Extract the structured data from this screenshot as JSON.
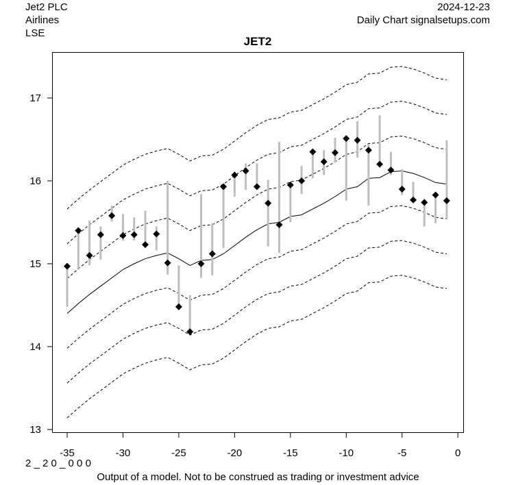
{
  "header": {
    "company": "Jet2 PLC",
    "sector": "Airlines",
    "exchange": "LSE",
    "date": "2024-12-23",
    "source": "Daily Chart signalsetups.com"
  },
  "footer": {
    "code": "2 _ 2 0 _ 0 0 0",
    "disclaimer": "Output of a model. Not to be construed as trading or investment advice"
  },
  "chart_data": {
    "type": "line",
    "title": "JET2",
    "xlabel": "",
    "ylabel": "",
    "xlim": [
      -36.3,
      0.5
    ],
    "ylim": [
      12.96,
      17.55
    ],
    "xticks": [
      -35,
      -30,
      -25,
      -20,
      -15,
      -10,
      -5,
      0
    ],
    "xtick_labels": [
      "-35",
      "-30",
      "-25",
      "-20",
      "-15",
      "-10",
      "-5",
      "0"
    ],
    "yticks": [
      13,
      14,
      15,
      16,
      17
    ],
    "ytick_labels": [
      "13",
      "14",
      "15",
      "16",
      "17"
    ],
    "grid": false,
    "colors": {
      "center": "#000000",
      "band": "#000000",
      "range": "#bebebe",
      "close": "#000000"
    },
    "center_line": {
      "x": [
        -35,
        -34,
        -33,
        -32,
        -31,
        -30,
        -29,
        -28,
        -27,
        -26,
        -25,
        -24,
        -23,
        -22,
        -21,
        -20,
        -19,
        -18,
        -17,
        -16,
        -15,
        -14,
        -13,
        -12,
        -11,
        -10,
        -9,
        -8,
        -7,
        -6,
        -5,
        -4,
        -3,
        -2,
        -1
      ],
      "y": [
        14.4,
        14.52,
        14.63,
        14.73,
        14.83,
        14.93,
        15.0,
        15.06,
        15.1,
        15.13,
        15.06,
        14.98,
        15.04,
        15.05,
        15.12,
        15.22,
        15.32,
        15.41,
        15.48,
        15.5,
        15.57,
        15.59,
        15.66,
        15.73,
        15.81,
        15.9,
        15.93,
        16.03,
        16.04,
        16.11,
        16.12,
        16.09,
        16.04,
        15.98,
        15.96
      ]
    },
    "band_offsets": [
      0.42,
      0.84,
      1.26,
      -0.42,
      -0.84,
      -1.26
    ],
    "bars": [
      {
        "x": -35,
        "low": 14.48,
        "high": 15.0,
        "close": 14.97
      },
      {
        "x": -34,
        "low": 14.94,
        "high": 15.41,
        "close": 15.4
      },
      {
        "x": -33,
        "low": 14.98,
        "high": 15.52,
        "close": 15.1
      },
      {
        "x": -32,
        "low": 15.05,
        "high": 15.45,
        "close": 15.35
      },
      {
        "x": -31,
        "low": 15.51,
        "high": 15.7,
        "close": 15.58
      },
      {
        "x": -30,
        "low": 15.28,
        "high": 15.6,
        "close": 15.34
      },
      {
        "x": -29,
        "low": 15.28,
        "high": 15.56,
        "close": 15.35
      },
      {
        "x": -28,
        "low": 15.22,
        "high": 15.64,
        "close": 15.23
      },
      {
        "x": -27,
        "low": 15.16,
        "high": 15.45,
        "close": 15.36
      },
      {
        "x": -26,
        "low": 14.87,
        "high": 16.0,
        "close": 15.01
      },
      {
        "x": -25,
        "low": 14.46,
        "high": 14.98,
        "close": 14.48
      },
      {
        "x": -24,
        "low": 14.16,
        "high": 14.62,
        "close": 14.18
      },
      {
        "x": -23,
        "low": 14.83,
        "high": 15.84,
        "close": 15.0
      },
      {
        "x": -22,
        "low": 14.86,
        "high": 15.49,
        "close": 15.12
      },
      {
        "x": -21,
        "low": 15.19,
        "high": 15.94,
        "close": 15.93
      },
      {
        "x": -20,
        "low": 15.81,
        "high": 16.09,
        "close": 16.07
      },
      {
        "x": -19,
        "low": 15.89,
        "high": 16.21,
        "close": 16.12
      },
      {
        "x": -18,
        "low": 15.91,
        "high": 16.21,
        "close": 15.93
      },
      {
        "x": -17,
        "low": 15.21,
        "high": 16.01,
        "close": 15.73
      },
      {
        "x": -16,
        "low": 15.13,
        "high": 16.47,
        "close": 15.47
      },
      {
        "x": -15,
        "low": 15.5,
        "high": 15.96,
        "close": 15.95
      },
      {
        "x": -14,
        "low": 15.84,
        "high": 16.18,
        "close": 16.0
      },
      {
        "x": -13,
        "low": 16.03,
        "high": 16.36,
        "close": 16.35
      },
      {
        "x": -12,
        "low": 16.07,
        "high": 16.37,
        "close": 16.23
      },
      {
        "x": -11,
        "low": 16.22,
        "high": 16.52,
        "close": 16.34
      },
      {
        "x": -10,
        "low": 15.76,
        "high": 16.52,
        "close": 16.51
      },
      {
        "x": -9,
        "low": 16.28,
        "high": 16.72,
        "close": 16.49
      },
      {
        "x": -8,
        "low": 15.7,
        "high": 16.44,
        "close": 16.37
      },
      {
        "x": -7,
        "low": 16.17,
        "high": 16.79,
        "close": 16.2
      },
      {
        "x": -6,
        "low": 16.07,
        "high": 16.35,
        "close": 16.13
      },
      {
        "x": -5,
        "low": 15.83,
        "high": 16.14,
        "close": 15.9
      },
      {
        "x": -4,
        "low": 15.75,
        "high": 15.99,
        "close": 15.77
      },
      {
        "x": -3,
        "low": 15.45,
        "high": 15.75,
        "close": 15.74
      },
      {
        "x": -2,
        "low": 15.49,
        "high": 15.84,
        "close": 15.83
      },
      {
        "x": -1,
        "low": 15.54,
        "high": 16.49,
        "close": 15.76
      }
    ]
  }
}
